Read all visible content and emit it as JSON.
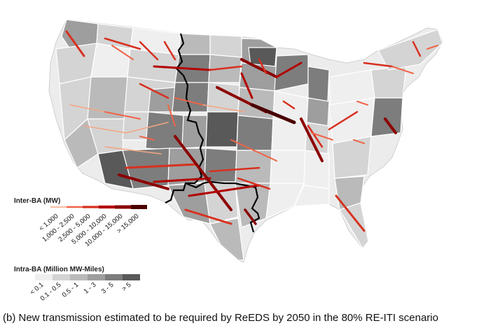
{
  "caption": "(b) New transmission estimated to be required by ReEDS by 2050 in the 80% RE-ITI scenario",
  "legend_inter_ba": {
    "title": "Inter-BA (MW)",
    "items": [
      {
        "label": "< 1,000",
        "color": "#f4a582"
      },
      {
        "label": "1,000 - 2,500",
        "color": "#ef6548"
      },
      {
        "label": "2,500 - 5,000",
        "color": "#d7301f"
      },
      {
        "label": "5,000 - 10,000",
        "color": "#b30000"
      },
      {
        "label": "10,000 - 15,000",
        "color": "#8b0000"
      },
      {
        "label": "> 15,000",
        "color": "#4a0000"
      }
    ]
  },
  "legend_intra_ba": {
    "title": "Intra-BA (Million MW-Miles)",
    "items": [
      {
        "label": "< 0.1",
        "color": "#efefef"
      },
      {
        "label": "0.1 - 0.5",
        "color": "#d4d4d4"
      },
      {
        "label": "0.5 - 1",
        "color": "#bababa"
      },
      {
        "label": "1 - 3",
        "color": "#9e9e9e"
      },
      {
        "label": "3 - 5",
        "color": "#7d7d7d"
      },
      {
        "label": "> 5",
        "color": "#595959"
      }
    ]
  },
  "map": {
    "land_color": "#ececec",
    "border_color": "#ffffff",
    "interconnection_boundary_color": "#000000"
  }
}
